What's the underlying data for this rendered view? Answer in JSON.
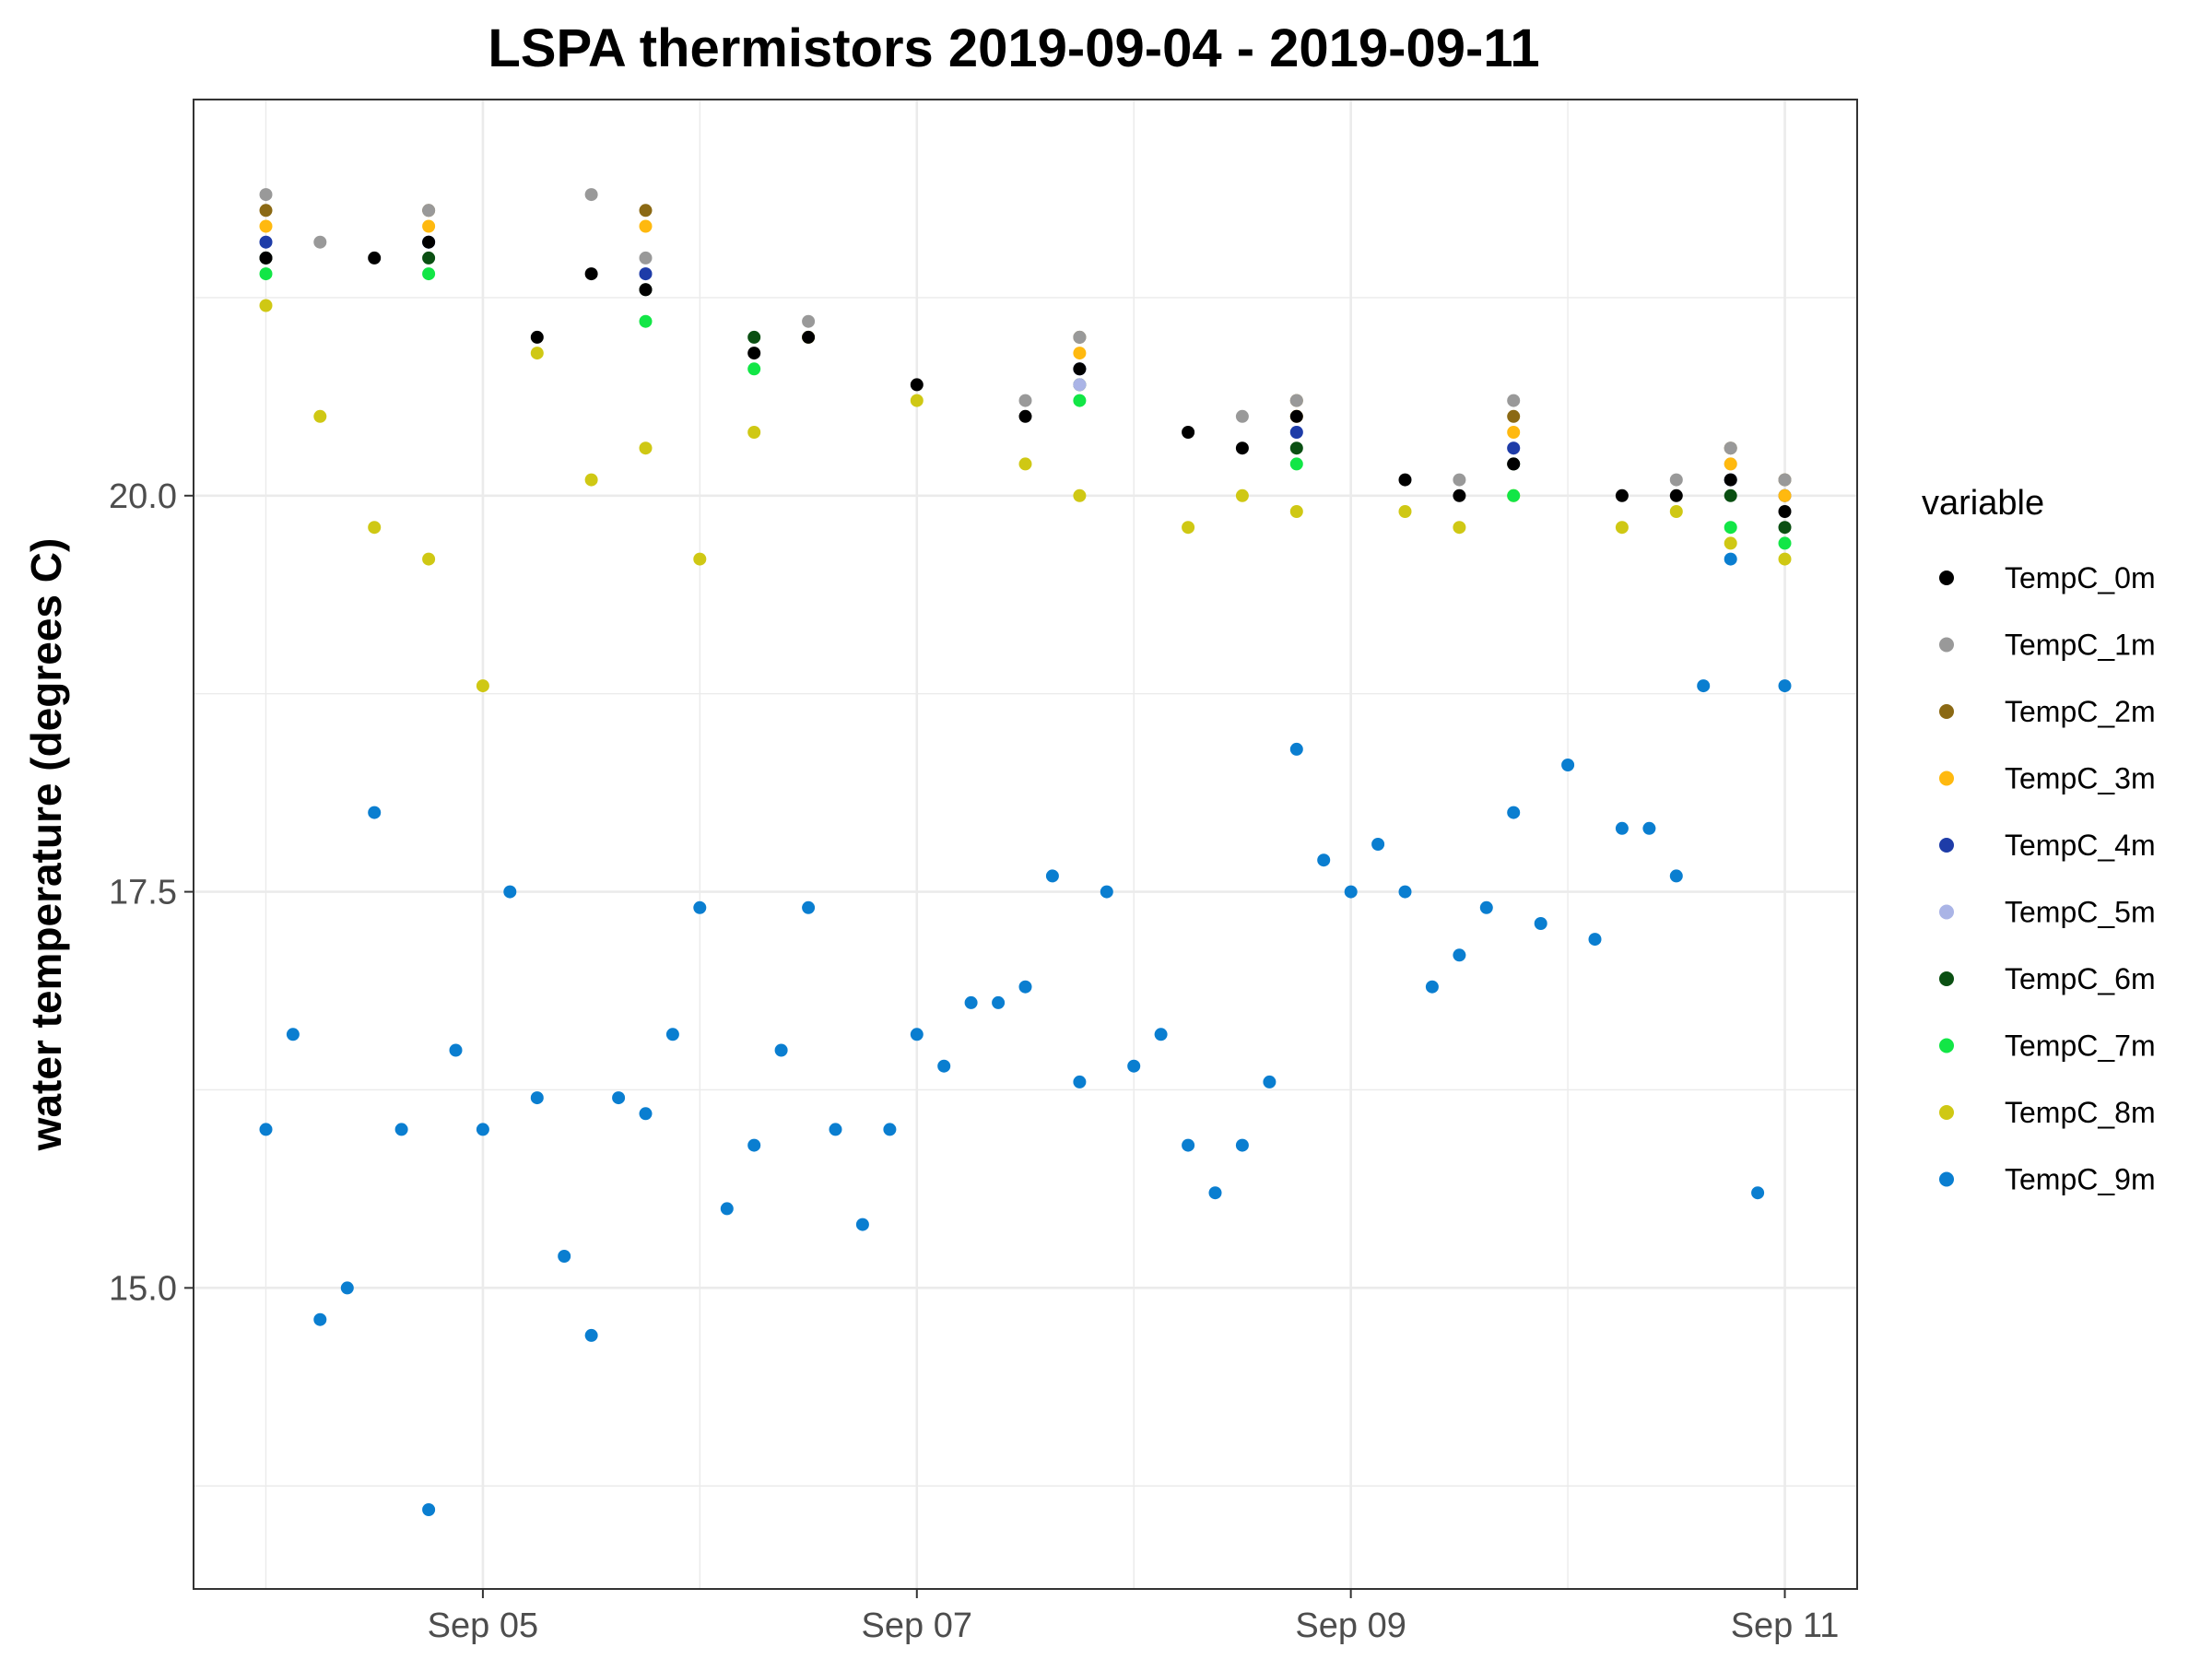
{
  "chart_data": {
    "type": "scatter",
    "title": "LSPA thermistors 2019-09-04 - 2019-09-11",
    "xlabel": "",
    "ylabel": "water temperature (degrees C)",
    "xlim": [
      "2019-09-03T16:00",
      "2019-09-11T08:00"
    ],
    "ylim": [
      13.1,
      22.5
    ],
    "x_ticks": [
      "Sep 05",
      "Sep 07",
      "Sep 09",
      "Sep 11"
    ],
    "x_tick_dates": [
      "2019-09-05",
      "2019-09-07",
      "2019-09-09",
      "2019-09-11"
    ],
    "y_ticks": [
      "15.0",
      "17.5",
      "20.0"
    ],
    "y_tick_values": [
      15.0,
      17.5,
      20.0
    ],
    "grid": true,
    "legend": {
      "title": "variable",
      "position": "right"
    },
    "series": [
      {
        "name": "TempC_0m",
        "color": "#000000",
        "x": [
          "2019-09-04T00:00",
          "2019-09-04T12:00",
          "2019-09-04T18:00",
          "2019-09-05T06:00",
          "2019-09-05T12:00",
          "2019-09-05T18:00",
          "2019-09-06T06:00",
          "2019-09-06T12:00",
          "2019-09-07T00:00",
          "2019-09-07T12:00",
          "2019-09-07T18:00",
          "2019-09-08T06:00",
          "2019-09-08T12:00",
          "2019-09-08T18:00",
          "2019-09-09T06:00",
          "2019-09-09T12:00",
          "2019-09-09T18:00",
          "2019-09-10T06:00",
          "2019-09-10T12:00",
          "2019-09-10T18:00",
          "2019-09-11T00:00"
        ],
        "y": [
          21.5,
          21.5,
          21.6,
          21.0,
          21.4,
          21.3,
          20.9,
          21.0,
          20.7,
          20.5,
          20.8,
          20.4,
          20.3,
          20.5,
          20.1,
          20.0,
          20.2,
          20.0,
          20.0,
          20.1,
          19.9
        ]
      },
      {
        "name": "TempC_1m",
        "color": "#999999",
        "x": [
          "2019-09-04T00:00",
          "2019-09-04T06:00",
          "2019-09-04T18:00",
          "2019-09-05T12:00",
          "2019-09-05T18:00",
          "2019-09-06T12:00",
          "2019-09-07T12:00",
          "2019-09-07T18:00",
          "2019-09-08T12:00",
          "2019-09-08T18:00",
          "2019-09-09T12:00",
          "2019-09-09T18:00",
          "2019-09-10T12:00",
          "2019-09-10T18:00",
          "2019-09-11T00:00"
        ],
        "y": [
          21.9,
          21.6,
          21.8,
          21.9,
          21.5,
          21.1,
          20.6,
          21.0,
          20.5,
          20.6,
          20.1,
          20.6,
          20.1,
          20.3,
          20.1
        ]
      },
      {
        "name": "TempC_2m",
        "color": "#8b6914",
        "x": [
          "2019-09-04T00:00",
          "2019-09-04T18:00",
          "2019-09-05T18:00",
          "2019-09-07T18:00",
          "2019-09-08T18:00",
          "2019-09-09T18:00",
          "2019-09-10T18:00",
          "2019-09-11T00:00"
        ],
        "y": [
          21.8,
          21.8,
          21.8,
          21.0,
          20.6,
          20.5,
          20.3,
          20.1
        ]
      },
      {
        "name": "TempC_3m",
        "color": "#ffb90f",
        "x": [
          "2019-09-04T00:00",
          "2019-09-04T18:00",
          "2019-09-05T18:00",
          "2019-09-07T18:00",
          "2019-09-08T18:00",
          "2019-09-09T18:00",
          "2019-09-10T18:00",
          "2019-09-11T00:00"
        ],
        "y": [
          21.7,
          21.7,
          21.7,
          20.9,
          20.5,
          20.4,
          20.2,
          20.0
        ]
      },
      {
        "name": "TempC_4m",
        "color": "#1e3ca8",
        "x": [
          "2019-09-04T00:00",
          "2019-09-04T18:00",
          "2019-09-05T18:00",
          "2019-09-07T18:00",
          "2019-09-08T18:00",
          "2019-09-09T18:00",
          "2019-09-10T18:00",
          "2019-09-11T00:00"
        ],
        "y": [
          21.6,
          21.6,
          21.4,
          20.8,
          20.4,
          20.3,
          20.1,
          20.0
        ]
      },
      {
        "name": "TempC_5m",
        "color": "#aab4e6",
        "x": [
          "2019-09-04T00:00",
          "2019-09-04T18:00",
          "2019-09-05T18:00",
          "2019-09-07T18:00",
          "2019-09-08T18:00",
          "2019-09-09T18:00",
          "2019-09-10T18:00",
          "2019-09-11T00:00"
        ],
        "y": [
          21.6,
          21.6,
          21.4,
          20.7,
          20.4,
          20.3,
          20.2,
          20.0
        ]
      },
      {
        "name": "TempC_6m",
        "color": "#0a4f12",
        "x": [
          "2019-09-04T00:00",
          "2019-09-04T18:00",
          "2019-09-05T18:00",
          "2019-09-06T06:00",
          "2019-09-07T18:00",
          "2019-09-08T18:00",
          "2019-09-09T18:00",
          "2019-09-10T18:00",
          "2019-09-11T00:00"
        ],
        "y": [
          21.5,
          21.5,
          21.3,
          21.0,
          20.7,
          20.3,
          20.2,
          20.0,
          19.8
        ]
      },
      {
        "name": "TempC_7m",
        "color": "#12e646",
        "x": [
          "2019-09-04T00:00",
          "2019-09-04T18:00",
          "2019-09-05T18:00",
          "2019-09-06T06:00",
          "2019-09-07T18:00",
          "2019-09-08T18:00",
          "2019-09-09T18:00",
          "2019-09-10T18:00",
          "2019-09-11T00:00"
        ],
        "y": [
          21.4,
          21.4,
          21.1,
          20.8,
          20.6,
          20.2,
          20.0,
          19.8,
          19.7
        ]
      },
      {
        "name": "TempC_8m",
        "color": "#cfc814",
        "x": [
          "2019-09-04T00:00",
          "2019-09-04T06:00",
          "2019-09-04T12:00",
          "2019-09-04T18:00",
          "2019-09-05T00:00",
          "2019-09-05T06:00",
          "2019-09-05T12:00",
          "2019-09-05T18:00",
          "2019-09-06T00:00",
          "2019-09-06T06:00",
          "2019-09-06T12:00",
          "2019-09-07T00:00",
          "2019-09-07T12:00",
          "2019-09-07T18:00",
          "2019-09-08T06:00",
          "2019-09-08T12:00",
          "2019-09-08T18:00",
          "2019-09-09T06:00",
          "2019-09-09T12:00",
          "2019-09-09T18:00",
          "2019-09-10T06:00",
          "2019-09-10T12:00",
          "2019-09-10T18:00",
          "2019-09-11T00:00"
        ],
        "y": [
          21.2,
          20.5,
          19.8,
          19.6,
          18.8,
          20.9,
          20.1,
          20.3,
          19.6,
          20.4,
          21.0,
          20.6,
          20.2,
          20.0,
          19.8,
          20.0,
          19.9,
          19.9,
          19.8,
          20.0,
          19.8,
          19.9,
          19.7,
          19.6
        ]
      },
      {
        "name": "TempC_9m",
        "color": "#0a7ed0",
        "x": [
          "2019-09-04T00:00",
          "2019-09-04T03:00",
          "2019-09-04T06:00",
          "2019-09-04T09:00",
          "2019-09-04T12:00",
          "2019-09-04T15:00",
          "2019-09-04T18:00",
          "2019-09-04T21:00",
          "2019-09-05T00:00",
          "2019-09-05T03:00",
          "2019-09-05T06:00",
          "2019-09-05T09:00",
          "2019-09-05T12:00",
          "2019-09-05T15:00",
          "2019-09-05T18:00",
          "2019-09-05T21:00",
          "2019-09-06T00:00",
          "2019-09-06T03:00",
          "2019-09-06T06:00",
          "2019-09-06T09:00",
          "2019-09-06T12:00",
          "2019-09-06T15:00",
          "2019-09-06T18:00",
          "2019-09-06T21:00",
          "2019-09-07T00:00",
          "2019-09-07T03:00",
          "2019-09-07T06:00",
          "2019-09-07T09:00",
          "2019-09-07T12:00",
          "2019-09-07T15:00",
          "2019-09-07T18:00",
          "2019-09-07T21:00",
          "2019-09-08T00:00",
          "2019-09-08T03:00",
          "2019-09-08T06:00",
          "2019-09-08T09:00",
          "2019-09-08T12:00",
          "2019-09-08T15:00",
          "2019-09-08T18:00",
          "2019-09-08T21:00",
          "2019-09-09T00:00",
          "2019-09-09T03:00",
          "2019-09-09T06:00",
          "2019-09-09T09:00",
          "2019-09-09T12:00",
          "2019-09-09T15:00",
          "2019-09-09T18:00",
          "2019-09-09T21:00",
          "2019-09-10T00:00",
          "2019-09-10T03:00",
          "2019-09-10T06:00",
          "2019-09-10T09:00",
          "2019-09-10T12:00",
          "2019-09-10T15:00",
          "2019-09-10T18:00",
          "2019-09-10T21:00",
          "2019-09-11T00:00"
        ],
        "y": [
          16.0,
          16.6,
          14.8,
          15.0,
          18.0,
          16.0,
          13.6,
          16.5,
          16.0,
          17.5,
          16.2,
          15.2,
          14.7,
          16.2,
          16.1,
          16.6,
          17.4,
          15.5,
          15.9,
          16.5,
          17.4,
          16.0,
          15.4,
          16.0,
          16.6,
          16.4,
          16.8,
          16.8,
          16.9,
          17.6,
          16.3,
          17.5,
          16.4,
          16.6,
          15.9,
          15.6,
          15.9,
          16.3,
          18.4,
          17.7,
          17.5,
          17.8,
          17.5,
          16.9,
          17.1,
          17.4,
          18.0,
          17.3,
          18.3,
          17.2,
          17.9,
          17.9,
          17.6,
          18.8,
          19.6,
          15.6,
          18.8
        ]
      }
    ]
  }
}
